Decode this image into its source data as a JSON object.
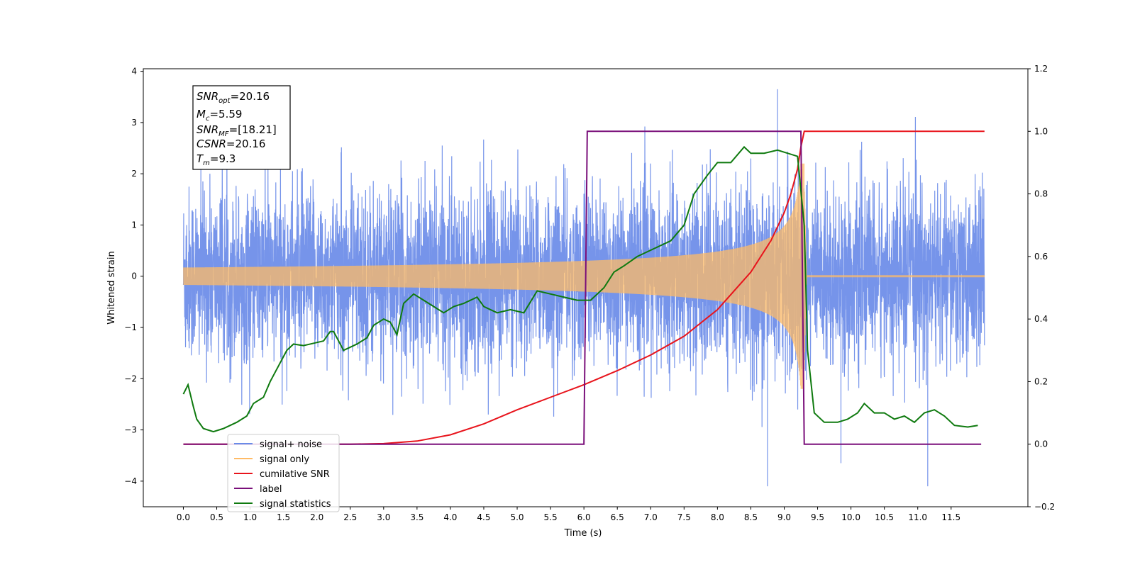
{
  "chart_data": {
    "type": "line",
    "xlabel": "Time (s)",
    "ylabel_left": "Whitened strain",
    "ylabel_right": "",
    "xlim": [
      -0.6,
      12.65
    ],
    "ylim_left": [
      -4.5,
      4.05
    ],
    "ylim_right": [
      -0.2,
      1.2
    ],
    "x_ticks": [
      "0.0",
      "0.5",
      "1.0",
      "1.5",
      "2.0",
      "2.5",
      "3.0",
      "3.5",
      "4.0",
      "4.5",
      "5.0",
      "5.5",
      "6.0",
      "6.5",
      "7.0",
      "7.5",
      "8.0",
      "8.5",
      "9.0",
      "9.5",
      "10.0",
      "10.5",
      "11.0",
      "11.5"
    ],
    "y_ticks_left": [
      "4",
      "3",
      "2",
      "1",
      "0",
      "−1",
      "−2",
      "−3",
      "−4"
    ],
    "y_ticks_right": [
      "1.2",
      "1.0",
      "0.8",
      "0.6",
      "0.4",
      "0.2",
      "0.0",
      "−0.2"
    ],
    "grid": false,
    "legend_position": "lower-left",
    "annotation": {
      "snr_opt": {
        "main": "SNR",
        "sub": "opt",
        "value": "=20.16"
      },
      "mc": {
        "main": "M",
        "sub": "c",
        "value": "=5.59"
      },
      "snr_mf": {
        "main": "SNR",
        "sub": "MF",
        "value": "=[18.21]"
      },
      "csnr": {
        "main": "CSNR",
        "sub": "",
        "value": "=20.16"
      },
      "tm": {
        "main": "T",
        "sub": "m",
        "value": "=9.3"
      }
    },
    "series": [
      {
        "name": "signal+ noise",
        "axis": "left",
        "color": "#6a8be8",
        "description_range": [
          -2.7,
          3.65
        ],
        "x_range": [
          0.0,
          12.0
        ],
        "event_spikes": [
          [
            8.75,
            -4.1
          ],
          [
            8.9,
            3.65
          ],
          [
            11.15,
            -4.1
          ],
          [
            9.85,
            -3.65
          ]
        ]
      },
      {
        "name": "signal only",
        "axis": "left",
        "color": "#ffbb66",
        "chirp": {
          "t_start": 0.0,
          "t_merge": 9.3,
          "peak_amplitude": 2.2
        }
      },
      {
        "name": "cumilative SNR",
        "axis": "right",
        "color": "#e8141c",
        "points": [
          [
            0.0,
            0.0
          ],
          [
            2.5,
            0.0
          ],
          [
            3.0,
            0.002
          ],
          [
            3.5,
            0.01
          ],
          [
            4.0,
            0.03
          ],
          [
            4.5,
            0.065
          ],
          [
            5.0,
            0.11
          ],
          [
            5.5,
            0.15
          ],
          [
            6.0,
            0.19
          ],
          [
            6.5,
            0.235
          ],
          [
            7.0,
            0.285
          ],
          [
            7.5,
            0.345
          ],
          [
            8.0,
            0.43
          ],
          [
            8.5,
            0.55
          ],
          [
            8.8,
            0.65
          ],
          [
            9.0,
            0.74
          ],
          [
            9.1,
            0.8
          ],
          [
            9.2,
            0.88
          ],
          [
            9.25,
            0.95
          ],
          [
            9.3,
            1.0
          ],
          [
            12.0,
            1.0
          ]
        ]
      },
      {
        "name": "label",
        "axis": "right",
        "color": "#7a0f7a",
        "points": [
          [
            0.0,
            0.0
          ],
          [
            6.0,
            0.0
          ],
          [
            6.05,
            1.0
          ],
          [
            9.25,
            1.0
          ],
          [
            9.3,
            0.0
          ],
          [
            11.95,
            0.0
          ]
        ]
      },
      {
        "name": "signal statistics",
        "axis": "right",
        "color": "#0f7a0f",
        "points": [
          [
            0.0,
            0.16
          ],
          [
            0.07,
            0.19
          ],
          [
            0.15,
            0.12
          ],
          [
            0.2,
            0.08
          ],
          [
            0.3,
            0.05
          ],
          [
            0.45,
            0.04
          ],
          [
            0.6,
            0.05
          ],
          [
            0.8,
            0.07
          ],
          [
            0.95,
            0.09
          ],
          [
            1.05,
            0.13
          ],
          [
            1.2,
            0.15
          ],
          [
            1.3,
            0.2
          ],
          [
            1.45,
            0.26
          ],
          [
            1.55,
            0.3
          ],
          [
            1.65,
            0.32
          ],
          [
            1.8,
            0.315
          ],
          [
            1.9,
            0.32
          ],
          [
            2.1,
            0.33
          ],
          [
            2.2,
            0.36
          ],
          [
            2.25,
            0.36
          ],
          [
            2.4,
            0.3
          ],
          [
            2.6,
            0.32
          ],
          [
            2.75,
            0.34
          ],
          [
            2.85,
            0.38
          ],
          [
            3.0,
            0.4
          ],
          [
            3.1,
            0.39
          ],
          [
            3.2,
            0.35
          ],
          [
            3.3,
            0.45
          ],
          [
            3.45,
            0.48
          ],
          [
            3.6,
            0.46
          ],
          [
            3.75,
            0.44
          ],
          [
            3.9,
            0.42
          ],
          [
            4.05,
            0.44
          ],
          [
            4.2,
            0.45
          ],
          [
            4.4,
            0.47
          ],
          [
            4.5,
            0.44
          ],
          [
            4.7,
            0.42
          ],
          [
            4.9,
            0.43
          ],
          [
            5.1,
            0.42
          ],
          [
            5.3,
            0.49
          ],
          [
            5.5,
            0.48
          ],
          [
            5.7,
            0.47
          ],
          [
            5.9,
            0.46
          ],
          [
            6.1,
            0.46
          ],
          [
            6.3,
            0.5
          ],
          [
            6.45,
            0.55
          ],
          [
            6.6,
            0.57
          ],
          [
            6.8,
            0.6
          ],
          [
            7.0,
            0.62
          ],
          [
            7.3,
            0.65
          ],
          [
            7.5,
            0.7
          ],
          [
            7.65,
            0.8
          ],
          [
            7.85,
            0.86
          ],
          [
            8.0,
            0.9
          ],
          [
            8.2,
            0.9
          ],
          [
            8.4,
            0.95
          ],
          [
            8.5,
            0.93
          ],
          [
            8.7,
            0.93
          ],
          [
            8.9,
            0.94
          ],
          [
            9.05,
            0.93
          ],
          [
            9.2,
            0.92
          ],
          [
            9.3,
            0.7
          ],
          [
            9.35,
            0.3
          ],
          [
            9.45,
            0.1
          ],
          [
            9.6,
            0.07
          ],
          [
            9.8,
            0.07
          ],
          [
            9.95,
            0.08
          ],
          [
            10.1,
            0.1
          ],
          [
            10.2,
            0.13
          ],
          [
            10.35,
            0.1
          ],
          [
            10.5,
            0.1
          ],
          [
            10.65,
            0.08
          ],
          [
            10.8,
            0.09
          ],
          [
            10.95,
            0.07
          ],
          [
            11.1,
            0.1
          ],
          [
            11.25,
            0.11
          ],
          [
            11.4,
            0.09
          ],
          [
            11.55,
            0.06
          ],
          [
            11.75,
            0.055
          ],
          [
            11.9,
            0.06
          ]
        ]
      }
    ]
  },
  "legend": [
    {
      "label": "signal+ noise",
      "color": "#6a8be8"
    },
    {
      "label": "signal only",
      "color": "#ffbb66"
    },
    {
      "label": "cumilative SNR",
      "color": "#e8141c"
    },
    {
      "label": "label",
      "color": "#7a0f7a"
    },
    {
      "label": "signal statistics",
      "color": "#0f7a0f"
    }
  ]
}
